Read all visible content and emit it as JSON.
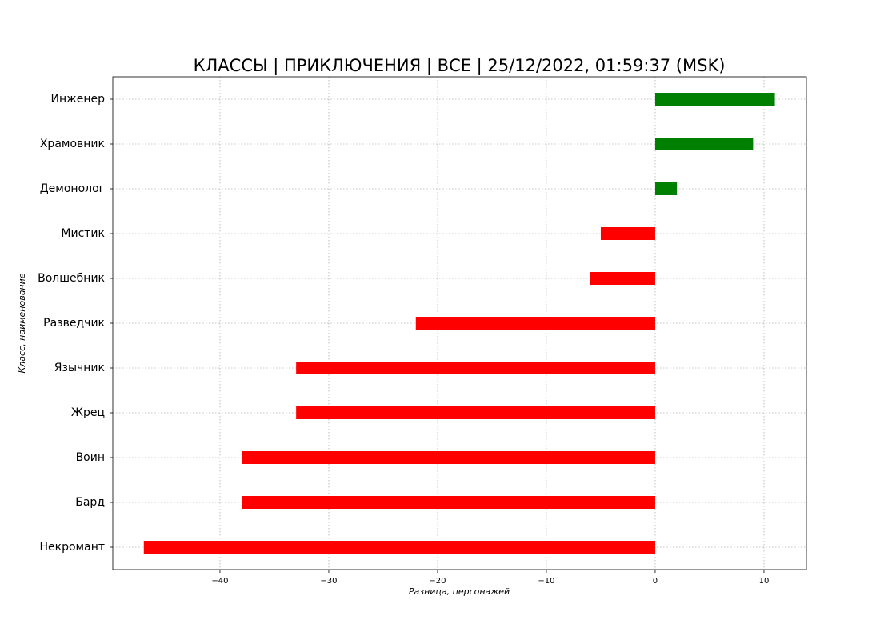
{
  "chart_data": {
    "type": "barh",
    "title": "КЛАССЫ | ПРИКЛЮЧЕНИЯ | ВСЕ | 25/12/2022, 01:59:37 (MSK)",
    "x_label": "Разница, персонажей",
    "y_label": "Класс, наименование",
    "categories": [
      "Инженер",
      "Храмовник",
      "Демонолог",
      "Мистик",
      "Волшебник",
      "Разведчик",
      "Язычник",
      "Жрец",
      "Воин",
      "Бард",
      "Некромант"
    ],
    "values": [
      11,
      9,
      2,
      -5,
      -6,
      -22,
      -33,
      -33,
      -38,
      -38,
      -47
    ],
    "positive_color": "#008000",
    "negative_color": "#ff0000",
    "xlim": [
      -49.85,
      13.9
    ],
    "xticks": [
      {
        "value": -40,
        "label": "−40"
      },
      {
        "value": -30,
        "label": "−30"
      },
      {
        "value": -20,
        "label": "−20"
      },
      {
        "value": -10,
        "label": "−10"
      },
      0,
      10
    ],
    "grid": true
  }
}
